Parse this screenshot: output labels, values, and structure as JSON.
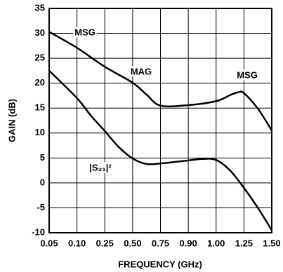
{
  "chart_data": {
    "type": "line",
    "x_label": "FREQUENCY (GHz)",
    "y_label": "GAIN (dB)",
    "xlim": [
      0.05,
      1.5
    ],
    "xticks": [
      0.05,
      {
        "value": 0.1,
        "label": "0.10"
      },
      0.25,
      {
        "value": 0.5,
        "label": "0.50"
      },
      0.75,
      {
        "value": 0.9,
        "label": "0.90"
      },
      {
        "value": 1.0,
        "label": "1.00"
      },
      1.25,
      {
        "value": 1.5,
        "label": "1.50"
      }
    ],
    "ylim": [
      -10,
      35
    ],
    "yticks": [
      -10,
      -5,
      0,
      5,
      10,
      15,
      20,
      25,
      30,
      35
    ],
    "grid": true,
    "series": [
      {
        "color": "#000000",
        "x": [
          0.05,
          0.1,
          0.25,
          0.5,
          0.625,
          0.75,
          0.9,
          1.0,
          1.125,
          1.2,
          1.25,
          1.375,
          1.5
        ],
        "values": [
          30.3,
          27.1,
          23.3,
          20.1,
          17.7,
          15.5,
          15.6,
          16.4,
          17.6,
          18.2,
          18,
          14.9,
          10.5
        ]
      },
      {
        "color": "#000000",
        "x": [
          0.05,
          0.1,
          0.175,
          0.25,
          0.375,
          0.5,
          0.625,
          0.75,
          0.9,
          0.95,
          1.0,
          1.125,
          1.25,
          1.375,
          1.5
        ],
        "values": [
          22.5,
          17,
          13.5,
          10.4,
          7.2,
          4.9,
          3.8,
          3.9,
          4.5,
          4.8,
          4.6,
          2.5,
          -1,
          -5,
          -9.5
        ]
      }
    ],
    "annotations": [
      "MSG",
      "MAG",
      "MSG",
      "|S₂₁|²"
    ]
  }
}
